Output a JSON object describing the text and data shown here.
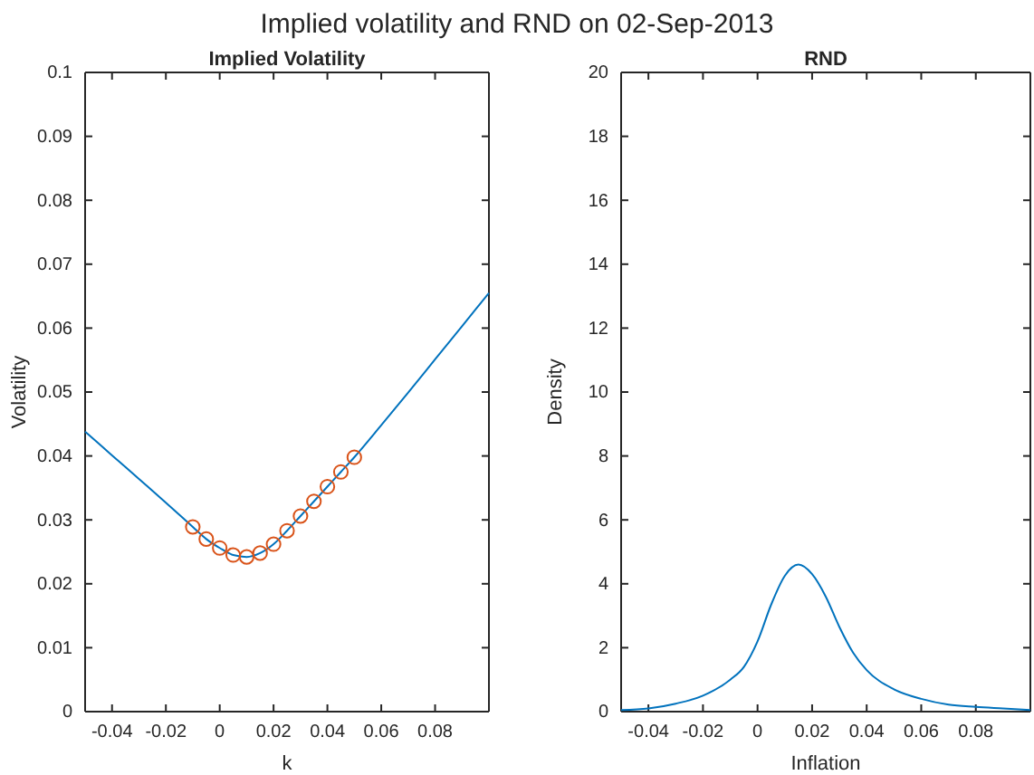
{
  "chart_data": [
    {
      "type": "line",
      "title": "Implied Volatility",
      "xlabel": "k",
      "ylabel": "Volatility",
      "xlim": [
        -0.05,
        0.1
      ],
      "xticks": [
        -0.04,
        -0.02,
        0,
        0.02,
        0.04,
        0.06,
        0.08
      ],
      "ylim": [
        0,
        0.1
      ],
      "yticks": [
        0,
        0.01,
        0.02,
        0.03,
        0.04,
        0.05,
        0.06,
        0.07,
        0.08,
        0.09,
        0.1
      ],
      "grid": false,
      "annotations": [
        "Implied volatility and RND on 02-Sep-2013"
      ],
      "series": [
        {
          "color": "#0072bd",
          "x": [
            -0.05,
            -0.04,
            -0.03,
            -0.02,
            -0.01,
            -0.005,
            0,
            0.005,
            0.01,
            0.015,
            0.02,
            0.025,
            0.03,
            0.035,
            0.04,
            0.045,
            0.05,
            0.06,
            0.07,
            0.08,
            0.09,
            0.1
          ],
          "values": [
            0.0438,
            0.0401,
            0.0364,
            0.0327,
            0.0289,
            0.027,
            0.0256,
            0.0245,
            0.0242,
            0.0248,
            0.0262,
            0.0283,
            0.0306,
            0.0329,
            0.0352,
            0.0375,
            0.0398,
            0.0448,
            0.0499,
            0.0551,
            0.0603,
            0.0655
          ]
        },
        {
          "type": "scatter",
          "marker": "circle",
          "color": "#d95319",
          "x": [
            -0.01,
            -0.005,
            0,
            0.005,
            0.01,
            0.015,
            0.02,
            0.025,
            0.03,
            0.035,
            0.04,
            0.045,
            0.05
          ],
          "values": [
            0.0289,
            0.027,
            0.0256,
            0.0245,
            0.0242,
            0.0248,
            0.0262,
            0.0283,
            0.0306,
            0.0329,
            0.0352,
            0.0375,
            0.0398
          ]
        }
      ]
    },
    {
      "type": "line",
      "title": "RND",
      "xlabel": "Inflation",
      "ylabel": "Density",
      "xlim": [
        -0.05,
        0.1
      ],
      "xticks": [
        -0.04,
        -0.02,
        0,
        0.02,
        0.04,
        0.06,
        0.08
      ],
      "ylim": [
        0,
        20
      ],
      "yticks": [
        0,
        2,
        4,
        6,
        8,
        10,
        12,
        14,
        16,
        18,
        20
      ],
      "grid": false,
      "series": [
        {
          "color": "#0072bd",
          "x": [
            -0.05,
            -0.04,
            -0.03,
            -0.02,
            -0.01,
            -0.005,
            0,
            0.005,
            0.01,
            0.015,
            0.02,
            0.025,
            0.03,
            0.035,
            0.04,
            0.05,
            0.06,
            0.07,
            0.08,
            0.09,
            0.1
          ],
          "values": [
            0.05,
            0.1,
            0.25,
            0.5,
            1.0,
            1.4,
            2.2,
            3.35,
            4.25,
            4.6,
            4.3,
            3.6,
            2.65,
            1.85,
            1.3,
            0.7,
            0.4,
            0.22,
            0.15,
            0.1,
            0.05
          ]
        }
      ]
    }
  ]
}
